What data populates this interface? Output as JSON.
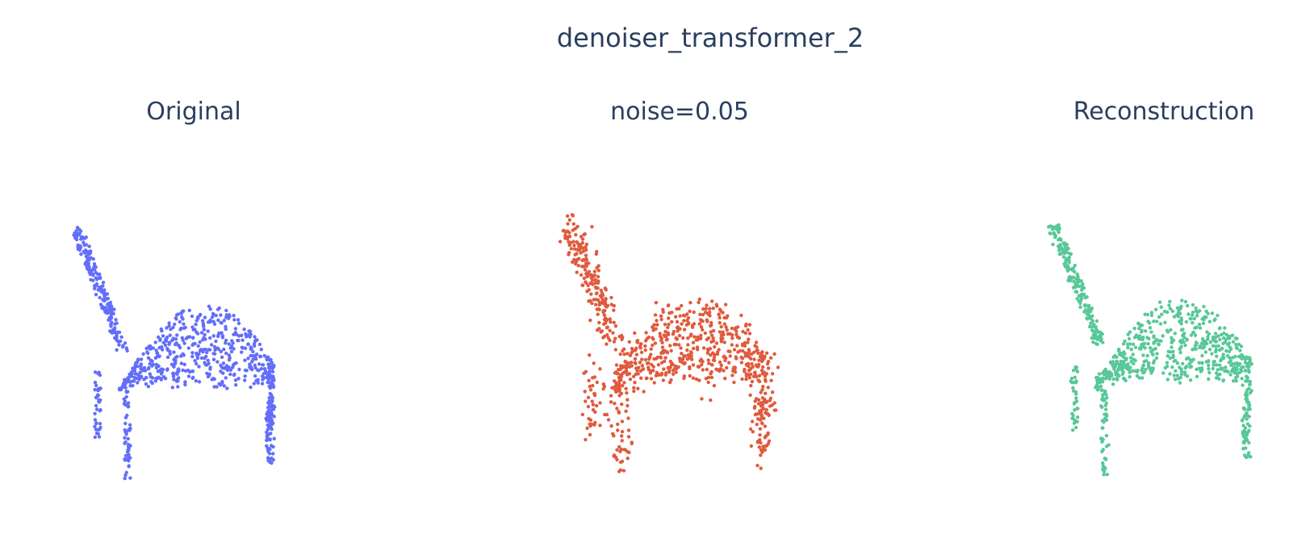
{
  "figure": {
    "title": "denoiser_transformer_2"
  },
  "chart_data": [
    {
      "type": "scatter",
      "title": "Original",
      "color": "#636efa",
      "description_of_shape": "chair point cloud",
      "point_count": 900
    },
    {
      "type": "scatter",
      "title": "noise=0.05",
      "color": "#e05a3e",
      "point_count": 900
    },
    {
      "type": "scatter",
      "title": "Reconstruction",
      "color": "#58c898",
      "point_count": 900
    }
  ]
}
